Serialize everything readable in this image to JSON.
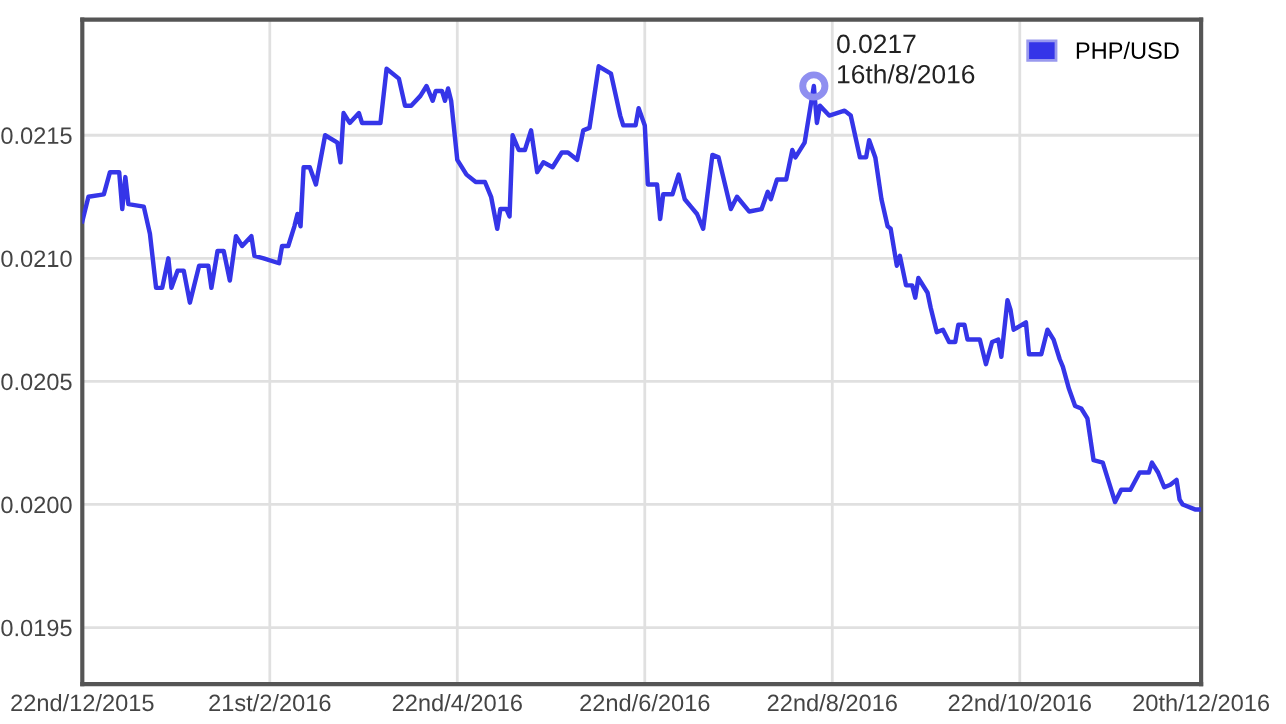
{
  "chart_data": {
    "type": "line",
    "x": [
      "2015-12-22",
      "2015-12-24",
      "2015-12-29",
      "2015-12-31",
      "2016-01-03",
      "2016-01-04",
      "2016-01-05",
      "2016-01-06",
      "2016-01-11",
      "2016-01-13",
      "2016-01-15",
      "2016-01-17",
      "2016-01-19",
      "2016-01-20",
      "2016-01-22",
      "2016-01-24",
      "2016-01-26",
      "2016-01-29",
      "2016-02-01",
      "2016-02-02",
      "2016-02-04",
      "2016-02-06",
      "2016-02-08",
      "2016-02-10",
      "2016-02-12",
      "2016-02-15",
      "2016-02-16",
      "2016-02-19",
      "2016-02-24",
      "2016-02-25",
      "2016-02-27",
      "2016-02-29",
      "2016-03-01",
      "2016-03-02",
      "2016-03-03",
      "2016-03-05",
      "2016-03-07",
      "2016-03-10",
      "2016-03-14",
      "2016-03-15",
      "2016-03-16",
      "2016-03-18",
      "2016-03-21",
      "2016-03-22",
      "2016-03-28",
      "2016-03-30",
      "2016-04-03",
      "2016-04-05",
      "2016-04-07",
      "2016-04-10",
      "2016-04-12",
      "2016-04-14",
      "2016-04-15",
      "2016-04-17",
      "2016-04-18",
      "2016-04-19",
      "2016-04-20",
      "2016-04-22",
      "2016-04-25",
      "2016-04-28",
      "2016-05-01",
      "2016-05-03",
      "2016-05-05",
      "2016-05-06",
      "2016-05-08",
      "2016-05-09",
      "2016-05-10",
      "2016-05-12",
      "2016-05-14",
      "2016-05-16",
      "2016-05-18",
      "2016-05-20",
      "2016-05-23",
      "2016-05-26",
      "2016-05-28",
      "2016-05-31",
      "2016-06-02",
      "2016-06-04",
      "2016-06-07",
      "2016-06-11",
      "2016-06-14",
      "2016-06-15",
      "2016-06-19",
      "2016-06-20",
      "2016-06-22",
      "2016-06-23",
      "2016-06-26",
      "2016-06-27",
      "2016-06-28",
      "2016-07-01",
      "2016-07-03",
      "2016-07-05",
      "2016-07-07",
      "2016-07-09",
      "2016-07-11",
      "2016-07-14",
      "2016-07-16",
      "2016-07-20",
      "2016-07-22",
      "2016-07-26",
      "2016-07-30",
      "2016-08-01",
      "2016-08-02",
      "2016-08-04",
      "2016-08-07",
      "2016-08-09",
      "2016-08-10",
      "2016-08-13",
      "2016-08-16",
      "2016-08-17",
      "2016-08-18",
      "2016-08-21",
      "2016-08-26",
      "2016-08-28",
      "2016-08-31",
      "2016-09-02",
      "2016-09-03",
      "2016-09-05",
      "2016-09-07",
      "2016-09-09",
      "2016-09-10",
      "2016-09-12",
      "2016-09-13",
      "2016-09-15",
      "2016-09-17",
      "2016-09-18",
      "2016-09-19",
      "2016-09-22",
      "2016-09-23",
      "2016-09-25",
      "2016-09-27",
      "2016-09-29",
      "2016-10-01",
      "2016-10-02",
      "2016-10-04",
      "2016-10-05",
      "2016-10-09",
      "2016-10-11",
      "2016-10-13",
      "2016-10-15",
      "2016-10-16",
      "2016-10-18",
      "2016-10-19",
      "2016-10-20",
      "2016-10-24",
      "2016-10-25",
      "2016-10-29",
      "2016-10-31",
      "2016-11-02",
      "2016-11-04",
      "2016-11-05",
      "2016-11-07",
      "2016-11-09",
      "2016-11-11",
      "2016-11-13",
      "2016-11-15",
      "2016-11-18",
      "2016-11-20",
      "2016-11-22",
      "2016-11-24",
      "2016-11-27",
      "2016-11-30",
      "2016-12-03",
      "2016-12-04",
      "2016-12-06",
      "2016-12-08",
      "2016-12-10",
      "2016-12-12",
      "2016-12-13",
      "2016-12-14",
      "2016-12-18",
      "2016-12-20"
    ],
    "series": [
      {
        "name": "PHP/USD",
        "color": "#3535e8",
        "values": [
          0.02115,
          0.02125,
          0.02126,
          0.02135,
          0.02135,
          0.0212,
          0.02133,
          0.02122,
          0.02121,
          0.0211,
          0.02088,
          0.02088,
          0.021,
          0.02088,
          0.02095,
          0.02095,
          0.02082,
          0.02097,
          0.02097,
          0.02088,
          0.02103,
          0.02103,
          0.02091,
          0.02109,
          0.02105,
          0.02109,
          0.02101,
          0.021,
          0.02098,
          0.02105,
          0.02105,
          0.02113,
          0.02118,
          0.02113,
          0.02137,
          0.02137,
          0.0213,
          0.0215,
          0.02147,
          0.02139,
          0.02159,
          0.02155,
          0.02159,
          0.02155,
          0.02155,
          0.02177,
          0.02173,
          0.02162,
          0.02162,
          0.02166,
          0.0217,
          0.02164,
          0.02168,
          0.02168,
          0.02164,
          0.02169,
          0.02164,
          0.0214,
          0.02134,
          0.02131,
          0.02131,
          0.02125,
          0.02112,
          0.0212,
          0.0212,
          0.02117,
          0.0215,
          0.02144,
          0.02144,
          0.02152,
          0.02135,
          0.02139,
          0.02137,
          0.02143,
          0.02143,
          0.0214,
          0.02152,
          0.02153,
          0.02178,
          0.02175,
          0.02158,
          0.02154,
          0.02154,
          0.02161,
          0.02154,
          0.0213,
          0.0213,
          0.02116,
          0.02126,
          0.02126,
          0.02134,
          0.02124,
          0.02121,
          0.02118,
          0.02112,
          0.02142,
          0.02141,
          0.0212,
          0.02125,
          0.02119,
          0.0212,
          0.02127,
          0.02124,
          0.02132,
          0.02132,
          0.02144,
          0.02141,
          0.02147,
          0.0217,
          0.02155,
          0.02162,
          0.02158,
          0.0216,
          0.02158,
          0.02141,
          0.02141,
          0.02148,
          0.02141,
          0.02124,
          0.02113,
          0.02112,
          0.02097,
          0.02101,
          0.02089,
          0.02089,
          0.02084,
          0.02092,
          0.02086,
          0.0208,
          0.0207,
          0.02071,
          0.02066,
          0.02066,
          0.02073,
          0.02073,
          0.02067,
          0.02067,
          0.02057,
          0.02066,
          0.02067,
          0.0206,
          0.02083,
          0.02079,
          0.02071,
          0.02074,
          0.02061,
          0.02061,
          0.02071,
          0.02067,
          0.02059,
          0.02056,
          0.02047,
          0.0204,
          0.02039,
          0.02035,
          0.02018,
          0.02017,
          0.02009,
          0.02001,
          0.02006,
          0.02006,
          0.02013,
          0.02013,
          0.02017,
          0.02013,
          0.02007,
          0.02008,
          0.0201,
          0.02002,
          0.02,
          0.01998,
          0.01998
        ]
      }
    ],
    "xlim": [
      "2015-12-22",
      "2016-12-20"
    ],
    "xticks": [
      {
        "value": "2015-12-22",
        "label": "22nd/12/2015"
      },
      {
        "value": "2016-02-21",
        "label": "21st/2/2016"
      },
      {
        "value": "2016-04-22",
        "label": "22nd/4/2016"
      },
      {
        "value": "2016-06-22",
        "label": "22nd/6/2016"
      },
      {
        "value": "2016-08-22",
        "label": "22nd/8/2016"
      },
      {
        "value": "2016-10-22",
        "label": "22nd/10/2016"
      },
      {
        "value": "2016-12-20",
        "label": "20th/12/2016"
      }
    ],
    "ylim": [
      0.01927,
      0.02197
    ],
    "yticks": [
      0.0195,
      {
        "value": 0.02,
        "label": "0.0200"
      },
      0.0205,
      {
        "value": 0.021,
        "label": "0.0210"
      },
      0.0215
    ],
    "annotations": [
      {
        "text": "0.0217\n16th/8/2016",
        "x": "2016-08-16",
        "y": 0.0217
      }
    ],
    "grid": true,
    "legend": "top right",
    "marker": "none",
    "line_style": "solid"
  }
}
